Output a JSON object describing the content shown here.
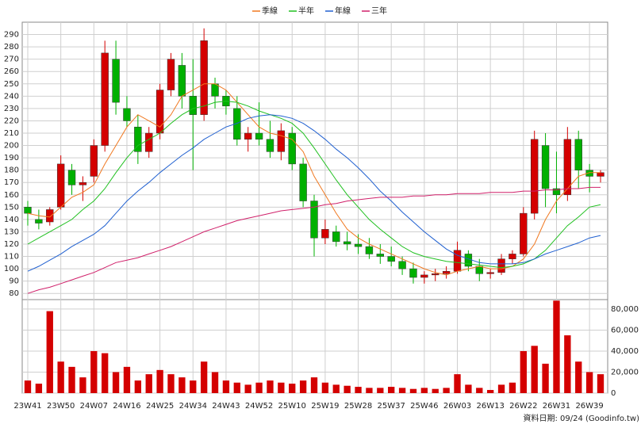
{
  "chart_data": [
    {
      "type": "candlestick",
      "categories": [
        "23W41",
        null,
        null,
        "23W50",
        null,
        null,
        "24W07",
        null,
        null,
        "24W16",
        null,
        null,
        "24W25",
        null,
        null,
        "24W34",
        null,
        null,
        "24W43",
        null,
        null,
        "24W52",
        null,
        null,
        "25W10",
        null,
        null,
        "25W19",
        null,
        null,
        "25W28",
        null,
        null,
        "25W37",
        null,
        null,
        "25W46",
        null,
        null,
        "26W03",
        null,
        null,
        "26W13",
        null,
        null,
        "26W22",
        null,
        null,
        "26W31",
        null,
        null,
        "26W39",
        null
      ],
      "open": [
        150,
        140,
        138,
        150,
        180,
        168,
        175,
        200,
        270,
        230,
        215,
        195,
        210,
        245,
        265,
        240,
        225,
        250,
        240,
        230,
        205,
        210,
        205,
        195,
        210,
        185,
        155,
        125,
        130,
        122,
        120,
        118,
        112,
        110,
        106,
        100,
        93,
        95,
        96,
        98,
        112,
        102,
        96,
        97,
        108,
        112,
        145,
        200,
        165,
        160,
        205,
        180,
        175
      ],
      "high": [
        155,
        148,
        150,
        192,
        185,
        175,
        205,
        285,
        285,
        240,
        225,
        215,
        250,
        275,
        275,
        270,
        295,
        255,
        245,
        240,
        215,
        235,
        220,
        218,
        215,
        190,
        160,
        140,
        135,
        130,
        128,
        125,
        120,
        118,
        110,
        105,
        98,
        100,
        102,
        122,
        115,
        108,
        100,
        112,
        115,
        150,
        212,
        210,
        195,
        215,
        212,
        185,
        180
      ],
      "low": [
        135,
        132,
        135,
        148,
        160,
        155,
        170,
        195,
        225,
        215,
        185,
        190,
        205,
        240,
        230,
        180,
        220,
        230,
        225,
        200,
        195,
        200,
        190,
        188,
        180,
        150,
        110,
        120,
        118,
        115,
        112,
        108,
        104,
        102,
        95,
        88,
        88,
        90,
        92,
        96,
        98,
        90,
        92,
        95,
        104,
        110,
        140,
        150,
        145,
        155,
        165,
        162,
        170
      ],
      "close": [
        145,
        137,
        148,
        185,
        168,
        170,
        200,
        275,
        235,
        220,
        195,
        210,
        245,
        270,
        240,
        225,
        285,
        240,
        232,
        205,
        210,
        205,
        195,
        212,
        185,
        155,
        125,
        132,
        122,
        120,
        118,
        112,
        110,
        106,
        100,
        93,
        95,
        96,
        98,
        115,
        102,
        96,
        97,
        108,
        112,
        145,
        205,
        165,
        160,
        205,
        180,
        175,
        178
      ],
      "up_color": "#d40000",
      "down_color": "#00b000",
      "series": [
        {
          "name": "季線",
          "color": "#f07820",
          "values": [
            145,
            143,
            142,
            150,
            158,
            162,
            168,
            185,
            200,
            215,
            225,
            220,
            215,
            225,
            240,
            245,
            250,
            250,
            245,
            235,
            225,
            215,
            210,
            208,
            205,
            195,
            175,
            160,
            145,
            132,
            125,
            120,
            116,
            112,
            108,
            104,
            100,
            97,
            95,
            98,
            100,
            102,
            100,
            100,
            102,
            108,
            120,
            140,
            155,
            165,
            175,
            178,
            178
          ]
        },
        {
          "name": "半年",
          "color": "#20c020",
          "values": [
            120,
            125,
            130,
            135,
            140,
            148,
            155,
            165,
            178,
            190,
            200,
            205,
            210,
            218,
            225,
            230,
            232,
            235,
            236,
            235,
            232,
            228,
            225,
            222,
            218,
            210,
            198,
            185,
            172,
            160,
            150,
            140,
            132,
            125,
            118,
            113,
            110,
            108,
            106,
            105,
            104,
            103,
            102,
            101,
            102,
            104,
            108,
            115,
            125,
            135,
            142,
            150,
            152
          ]
        },
        {
          "name": "年線",
          "color": "#2060d0",
          "values": [
            98,
            102,
            107,
            112,
            118,
            123,
            128,
            135,
            145,
            155,
            163,
            170,
            178,
            185,
            192,
            198,
            205,
            210,
            215,
            218,
            222,
            224,
            225,
            224,
            222,
            218,
            212,
            205,
            197,
            190,
            182,
            173,
            163,
            155,
            146,
            138,
            130,
            123,
            116,
            111,
            108,
            105,
            104,
            104,
            104,
            105,
            108,
            112,
            115,
            118,
            121,
            125,
            127
          ]
        },
        {
          "name": "三年",
          "color": "#d0206a",
          "values": [
            80,
            83,
            85,
            88,
            91,
            94,
            97,
            101,
            105,
            107,
            109,
            112,
            115,
            118,
            122,
            126,
            130,
            133,
            136,
            139,
            141,
            143,
            145,
            147,
            148,
            149,
            150,
            152,
            153,
            155,
            156,
            157,
            158,
            158,
            158,
            159,
            159,
            160,
            160,
            161,
            161,
            161,
            162,
            162,
            162,
            163,
            163,
            164,
            164,
            165,
            165,
            166,
            166
          ]
        }
      ],
      "ylim": [
        75,
        300
      ],
      "yticks": [
        80,
        90,
        100,
        110,
        120,
        130,
        140,
        150,
        160,
        170,
        180,
        190,
        200,
        210,
        220,
        230,
        240,
        250,
        260,
        270,
        280,
        290
      ],
      "grid": true
    },
    {
      "type": "bar",
      "values": [
        12000,
        9000,
        78000,
        30000,
        25000,
        15000,
        40000,
        38000,
        20000,
        25000,
        12000,
        18000,
        22000,
        18000,
        15000,
        12000,
        30000,
        20000,
        12000,
        10000,
        8000,
        10000,
        12000,
        10000,
        9000,
        12000,
        15000,
        10000,
        8000,
        7000,
        6000,
        5000,
        5000,
        6000,
        5000,
        4000,
        5000,
        4000,
        5000,
        18000,
        8000,
        5000,
        3000,
        8000,
        10000,
        40000,
        45000,
        28000,
        88000,
        55000,
        30000,
        20000,
        18000
      ],
      "color": "#d40000",
      "ylim": [
        0,
        89000
      ],
      "yticks": [
        0,
        {
          "value": 20000,
          "label": "20,000"
        },
        {
          "value": 40000,
          "label": "40,000"
        },
        {
          "value": 60000,
          "label": "60,000"
        },
        {
          "value": 80000,
          "label": "80,000"
        }
      ],
      "grid": true
    }
  ],
  "footer": "資料日期: 09/24 (Goodinfo.tw)"
}
